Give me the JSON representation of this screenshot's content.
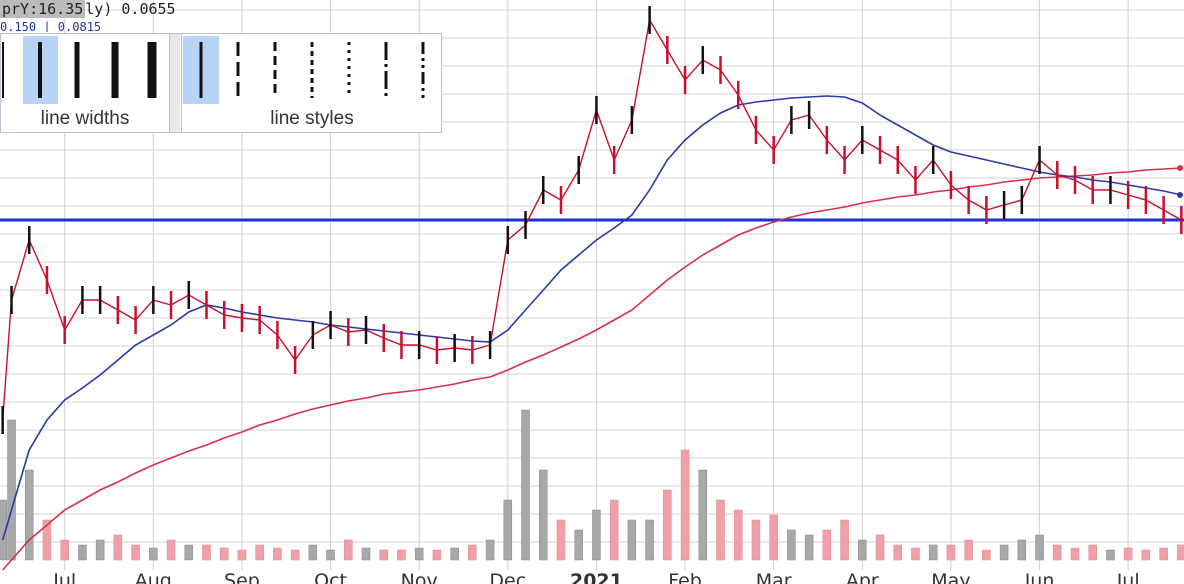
{
  "chart_data": {
    "type": "stock",
    "x": [
      -0.7,
      -0.6,
      -0.4,
      -0.2,
      0,
      0.2,
      0.4,
      0.6,
      0.8,
      1,
      1.2,
      1.4,
      1.6,
      1.8,
      2,
      2.2,
      2.4,
      2.6,
      2.8,
      3,
      3.2,
      3.4,
      3.6,
      3.8,
      4,
      4.2,
      4.4,
      4.6,
      4.8,
      5,
      5.2,
      5.4,
      5.6,
      5.8,
      6,
      6.2,
      6.4,
      6.6,
      6.8,
      7,
      7.2,
      7.4,
      7.6,
      7.8,
      8,
      8.2,
      8.4,
      8.6,
      8.8,
      9,
      9.2,
      9.4,
      9.6,
      9.8,
      10,
      10.2,
      10.4,
      10.6,
      10.8,
      11,
      11.2,
      11.4,
      11.6,
      11.8,
      12,
      12.2,
      12.4,
      12.6
    ],
    "series": [
      {
        "color": "#c8102e",
        "values": [
          164,
          284,
          344,
          304,
          254,
          284,
          284,
          274,
          264,
          284,
          279,
          289,
          279,
          269,
          266,
          264,
          249,
          224,
          249,
          259,
          252,
          254,
          246,
          239,
          239,
          234,
          236,
          234,
          239,
          344,
          359,
          394,
          384,
          414,
          474,
          424,
          464,
          564,
          534,
          504,
          524,
          514,
          489,
          454,
          434,
          464,
          469,
          444,
          424,
          444,
          434,
          424,
          404,
          424,
          399,
          384,
          374,
          379,
          384,
          424,
          409,
          404,
          394,
          394,
          389,
          384,
          374,
          364
        ]
      },
      {
        "color": "#2a3aa8",
        "values": [
          44,
          74,
          134,
          164,
          184,
          196,
          209,
          224,
          239,
          249,
          259,
          272,
          279,
          276,
          272,
          269,
          266,
          264,
          262,
          259,
          257,
          255,
          253,
          251,
          249,
          247,
          245,
          243,
          242,
          254,
          274,
          294,
          314,
          329,
          344,
          356,
          369,
          394,
          424,
          444,
          459,
          471,
          479,
          482,
          484,
          486,
          487,
          488,
          487,
          481,
          469,
          459,
          449,
          439,
          432,
          428,
          424,
          420,
          416,
          412,
          409,
          407,
          404,
          402,
          399,
          396,
          393,
          389
        ]
      },
      {
        "color": "#d8304a",
        "values": [
          14,
          24,
          44,
          59,
          74,
          84,
          94,
          102,
          111,
          119,
          126,
          133,
          139,
          146,
          152,
          159,
          164,
          170,
          175,
          179,
          183,
          186,
          190,
          192,
          194,
          197,
          200,
          204,
          207,
          214,
          222,
          229,
          237,
          245,
          254,
          264,
          274,
          289,
          304,
          317,
          329,
          339,
          349,
          356,
          362,
          367,
          371,
          374,
          377,
          381,
          384,
          387,
          389,
          392,
          394,
          397,
          399,
          402,
          404,
          406,
          407,
          408,
          409,
          411,
          412,
          414,
          415,
          416
        ]
      }
    ],
    "volume": {
      "axis": "y2",
      "values": [
        60,
        140,
        90,
        40,
        20,
        15,
        20,
        25,
        15,
        12,
        20,
        15,
        15,
        12,
        10,
        15,
        12,
        10,
        15,
        10,
        20,
        12,
        10,
        10,
        12,
        10,
        12,
        15,
        20,
        60,
        150,
        90,
        40,
        30,
        50,
        60,
        40,
        40,
        70,
        110,
        90,
        60,
        50,
        40,
        45,
        30,
        25,
        30,
        40,
        20,
        25,
        15,
        12,
        15,
        15,
        20,
        10,
        15,
        20,
        25,
        15,
        12,
        15,
        10,
        12,
        10,
        12,
        15
      ]
    },
    "hline": {
      "value": 364,
      "color": "#1a2fe0"
    },
    "xlim": [
      -0.73,
      12.63
    ],
    "ylim": [
      0,
      584
    ],
    "y2lim": [
      0,
      584
    ],
    "xticks": [
      {
        "value": 0,
        "label": "Jul"
      },
      {
        "value": 1,
        "label": "Aug"
      },
      {
        "value": 2,
        "label": "Sep"
      },
      {
        "value": 3,
        "label": "Oct"
      },
      {
        "value": 4,
        "label": "Nov"
      },
      {
        "value": 5,
        "label": "Dec"
      },
      {
        "value": 6,
        "label": "2021",
        "bold": true
      },
      {
        "value": 7,
        "label": "Feb"
      },
      {
        "value": 8,
        "label": "Mar"
      },
      {
        "value": 9,
        "label": "Apr"
      },
      {
        "value": 10,
        "label": "May"
      },
      {
        "value": 11,
        "label": "Jun"
      },
      {
        "value": 12,
        "label": "Jul"
      }
    ],
    "grid": true
  },
  "overlay": {
    "tag": "prY:16.35",
    "value_text": "ly) 0.0655",
    "sub_text": "0.150 | 0.0815",
    "widths_label": "line widths",
    "styles_label": "line styles"
  }
}
